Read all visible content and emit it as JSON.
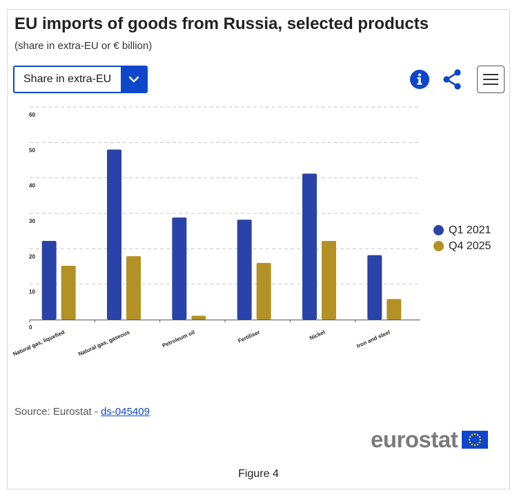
{
  "header": {
    "title": "EU imports of goods from Russia, selected products",
    "subtitle": "(share in extra-EU or € billion)"
  },
  "controls": {
    "selected_option": "Share in extra-EU",
    "info_icon": "info-icon",
    "share_icon": "share-icon",
    "menu_icon": "hamburger-menu-icon"
  },
  "colors": {
    "series_1": "#2a43a8",
    "series_2": "#b39125",
    "accent": "#0e47cb"
  },
  "chart_data": {
    "type": "bar",
    "title": "EU imports of goods from Russia, selected products",
    "xlabel": "",
    "ylabel": "",
    "ylim": [
      0,
      60
    ],
    "yticks": [
      0,
      10,
      20,
      30,
      40,
      50,
      60
    ],
    "grid": true,
    "legend_position": "right",
    "categories": [
      "Natural gas, liquefied",
      "Natural gas, gaseous",
      "Petroleum oil",
      "Fertiliser",
      "Nickel",
      "Iron and steel"
    ],
    "series": [
      {
        "name": "Q1 2021",
        "values": [
          22.2,
          48.0,
          28.8,
          28.2,
          41.2,
          18.2
        ]
      },
      {
        "name": "Q4 2025",
        "values": [
          15.2,
          17.9,
          1.1,
          16.0,
          22.2,
          5.8
        ]
      }
    ]
  },
  "footer": {
    "source_prefix": "Source: Eurostat - ",
    "source_link": "ds-045409",
    "logo_text": "eurostat",
    "figure_label": "Figure 4"
  }
}
